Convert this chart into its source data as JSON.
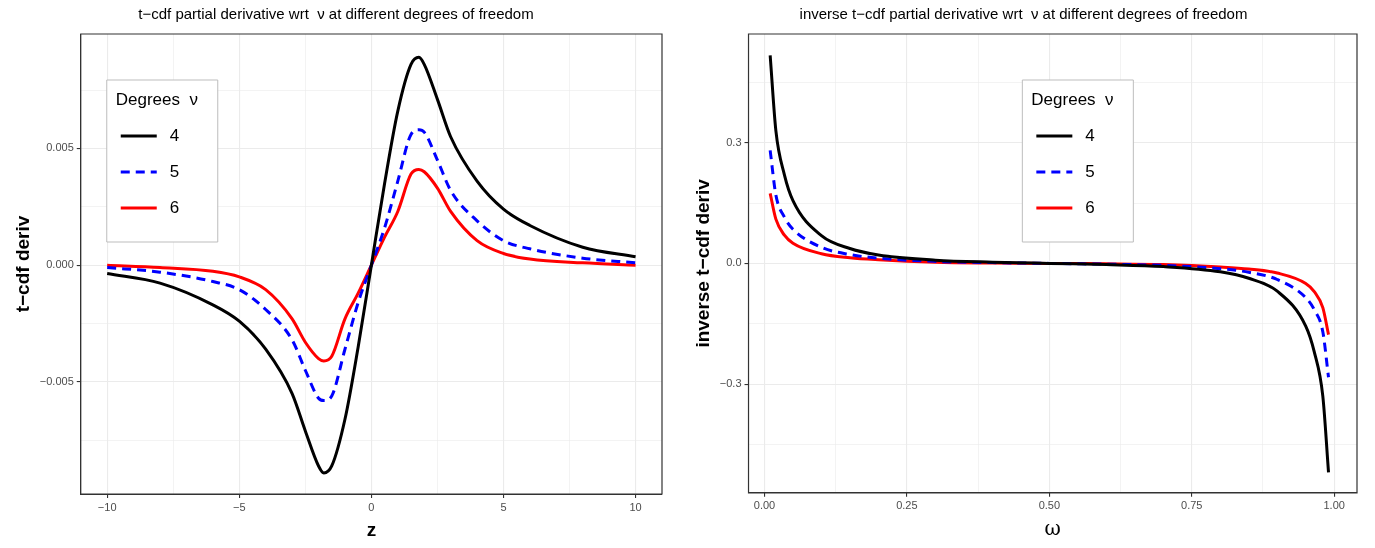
{
  "chart_data": [
    {
      "type": "line",
      "title": "t−cdf partial derivative wrt  ν at different degrees of freedom",
      "xlabel": "z",
      "ylabel": "t−cdf deriv",
      "legend_title": "Degrees  ν",
      "legend": "top left",
      "grid": true,
      "marker": "none",
      "xlim": [
        -11,
        11
      ],
      "ylim": [
        -0.0098,
        0.0099
      ],
      "xticks": [
        {
          "value": -10,
          "label": "−10"
        },
        {
          "value": -7.5,
          "label": null
        },
        {
          "value": -5,
          "label": "−5"
        },
        {
          "value": -2.5,
          "label": null
        },
        {
          "value": 0,
          "label": "0"
        },
        {
          "value": 2.5,
          "label": null
        },
        {
          "value": 5,
          "label": "5"
        },
        {
          "value": 7.5,
          "label": null
        },
        {
          "value": 10,
          "label": "10"
        }
      ],
      "yticks": [
        {
          "value": -0.0075,
          "label": null
        },
        {
          "value": -0.005,
          "label": "−0.005"
        },
        {
          "value": -0.0025,
          "label": null
        },
        {
          "value": 0,
          "label": "0.000"
        },
        {
          "value": 0.0025,
          "label": null
        },
        {
          "value": 0.005,
          "label": "0.005"
        },
        {
          "value": 0.0075,
          "label": null
        }
      ],
      "x": [
        -10,
        -8,
        -6,
        -5,
        -4,
        -3,
        -2.5,
        -2,
        -1.8,
        -1.5,
        -1,
        -0.5,
        0,
        0.5,
        1,
        1.5,
        1.8,
        2,
        2.5,
        3,
        4,
        5,
        6,
        8,
        10
      ],
      "series": [
        {
          "name": "4",
          "color": "#000000",
          "line_style": "solid",
          "values": [
            -0.00036,
            -0.00077,
            -0.0017,
            -0.0024,
            -0.0036,
            -0.0055,
            -0.0071,
            -0.0086,
            -0.0089,
            -0.0086,
            -0.0066,
            -0.0035,
            0,
            0.0035,
            0.0066,
            0.0086,
            0.0089,
            0.0086,
            0.0071,
            0.0055,
            0.0036,
            0.0024,
            0.0017,
            0.00077,
            0.00036
          ]
        },
        {
          "name": "5",
          "color": "#0000ff",
          "line_style": "dashed",
          "values": [
            -0.0001,
            -0.0003,
            -0.0007,
            -0.00105,
            -0.0019,
            -0.0032,
            -0.0045,
            -0.0057,
            -0.0058,
            -0.0056,
            -0.0036,
            -0.0016,
            0,
            0.0016,
            0.0036,
            0.0056,
            0.0058,
            0.0057,
            0.0045,
            0.0032,
            0.0019,
            0.00105,
            0.0007,
            0.0003,
            0.0001
          ]
        },
        {
          "name": "6",
          "color": "#ff0000",
          "line_style": "solid",
          "values": [
            0,
            -0.0001,
            -0.00026,
            -0.0005,
            -0.00105,
            -0.0023,
            -0.0033,
            -0.004,
            -0.0041,
            -0.0039,
            -0.0023,
            -0.0012,
            0,
            0.0012,
            0.0023,
            0.0039,
            0.0041,
            0.004,
            0.0033,
            0.0023,
            0.00105,
            0.0005,
            0.00026,
            0.0001,
            0
          ]
        }
      ]
    },
    {
      "type": "line",
      "title": "inverse t−cdf partial derivative wrt  ν at different degrees of freedom",
      "xlabel": "ω",
      "ylabel": "inverse t−cdf deriv",
      "legend_title": "Degrees  ν",
      "legend": "top",
      "grid": true,
      "marker": "none",
      "xlim": [
        -0.028,
        1.04
      ],
      "ylim": [
        -0.57,
        0.57
      ],
      "xticks": [
        {
          "value": 0,
          "label": "0.00"
        },
        {
          "value": 0.125,
          "label": null
        },
        {
          "value": 0.25,
          "label": "0.25"
        },
        {
          "value": 0.375,
          "label": null
        },
        {
          "value": 0.5,
          "label": "0.50"
        },
        {
          "value": 0.625,
          "label": null
        },
        {
          "value": 0.75,
          "label": "0.75"
        },
        {
          "value": 0.875,
          "label": null
        },
        {
          "value": 1,
          "label": "1.00"
        }
      ],
      "yticks": [
        {
          "value": -0.45,
          "label": null
        },
        {
          "value": -0.3,
          "label": "−0.3"
        },
        {
          "value": -0.15,
          "label": null
        },
        {
          "value": 0,
          "label": "0.0"
        },
        {
          "value": 0.15,
          "label": null
        },
        {
          "value": 0.3,
          "label": "0.3"
        },
        {
          "value": 0.45,
          "label": null
        }
      ],
      "x": [
        0.01,
        0.02,
        0.035,
        0.05,
        0.1,
        0.15,
        0.2,
        0.3,
        0.4,
        0.5,
        0.6,
        0.7,
        0.8,
        0.85,
        0.9,
        0.95,
        0.965,
        0.98,
        0.99
      ],
      "series": [
        {
          "name": "4",
          "color": "#000000",
          "line_style": "solid",
          "values": [
            0.517,
            0.33,
            0.22,
            0.156,
            0.069,
            0.037,
            0.021,
            0.008,
            0.003,
            0,
            -0.003,
            -0.008,
            -0.021,
            -0.037,
            -0.069,
            -0.156,
            -0.22,
            -0.33,
            -0.519
          ]
        },
        {
          "name": "5",
          "color": "#0000ff",
          "line_style": "dashed",
          "values": [
            0.281,
            0.17,
            0.115,
            0.085,
            0.04,
            0.022,
            0.013,
            0.005,
            0.002,
            0,
            -0.002,
            -0.005,
            -0.013,
            -0.022,
            -0.04,
            -0.085,
            -0.115,
            -0.17,
            -0.283
          ]
        },
        {
          "name": "6",
          "color": "#ff0000",
          "line_style": "solid",
          "values": [
            0.174,
            0.11,
            0.07,
            0.05,
            0.024,
            0.014,
            0.009,
            0.003,
            0.001,
            0,
            -0.001,
            -0.003,
            -0.009,
            -0.014,
            -0.024,
            -0.05,
            -0.07,
            -0.11,
            -0.177
          ]
        }
      ]
    }
  ]
}
